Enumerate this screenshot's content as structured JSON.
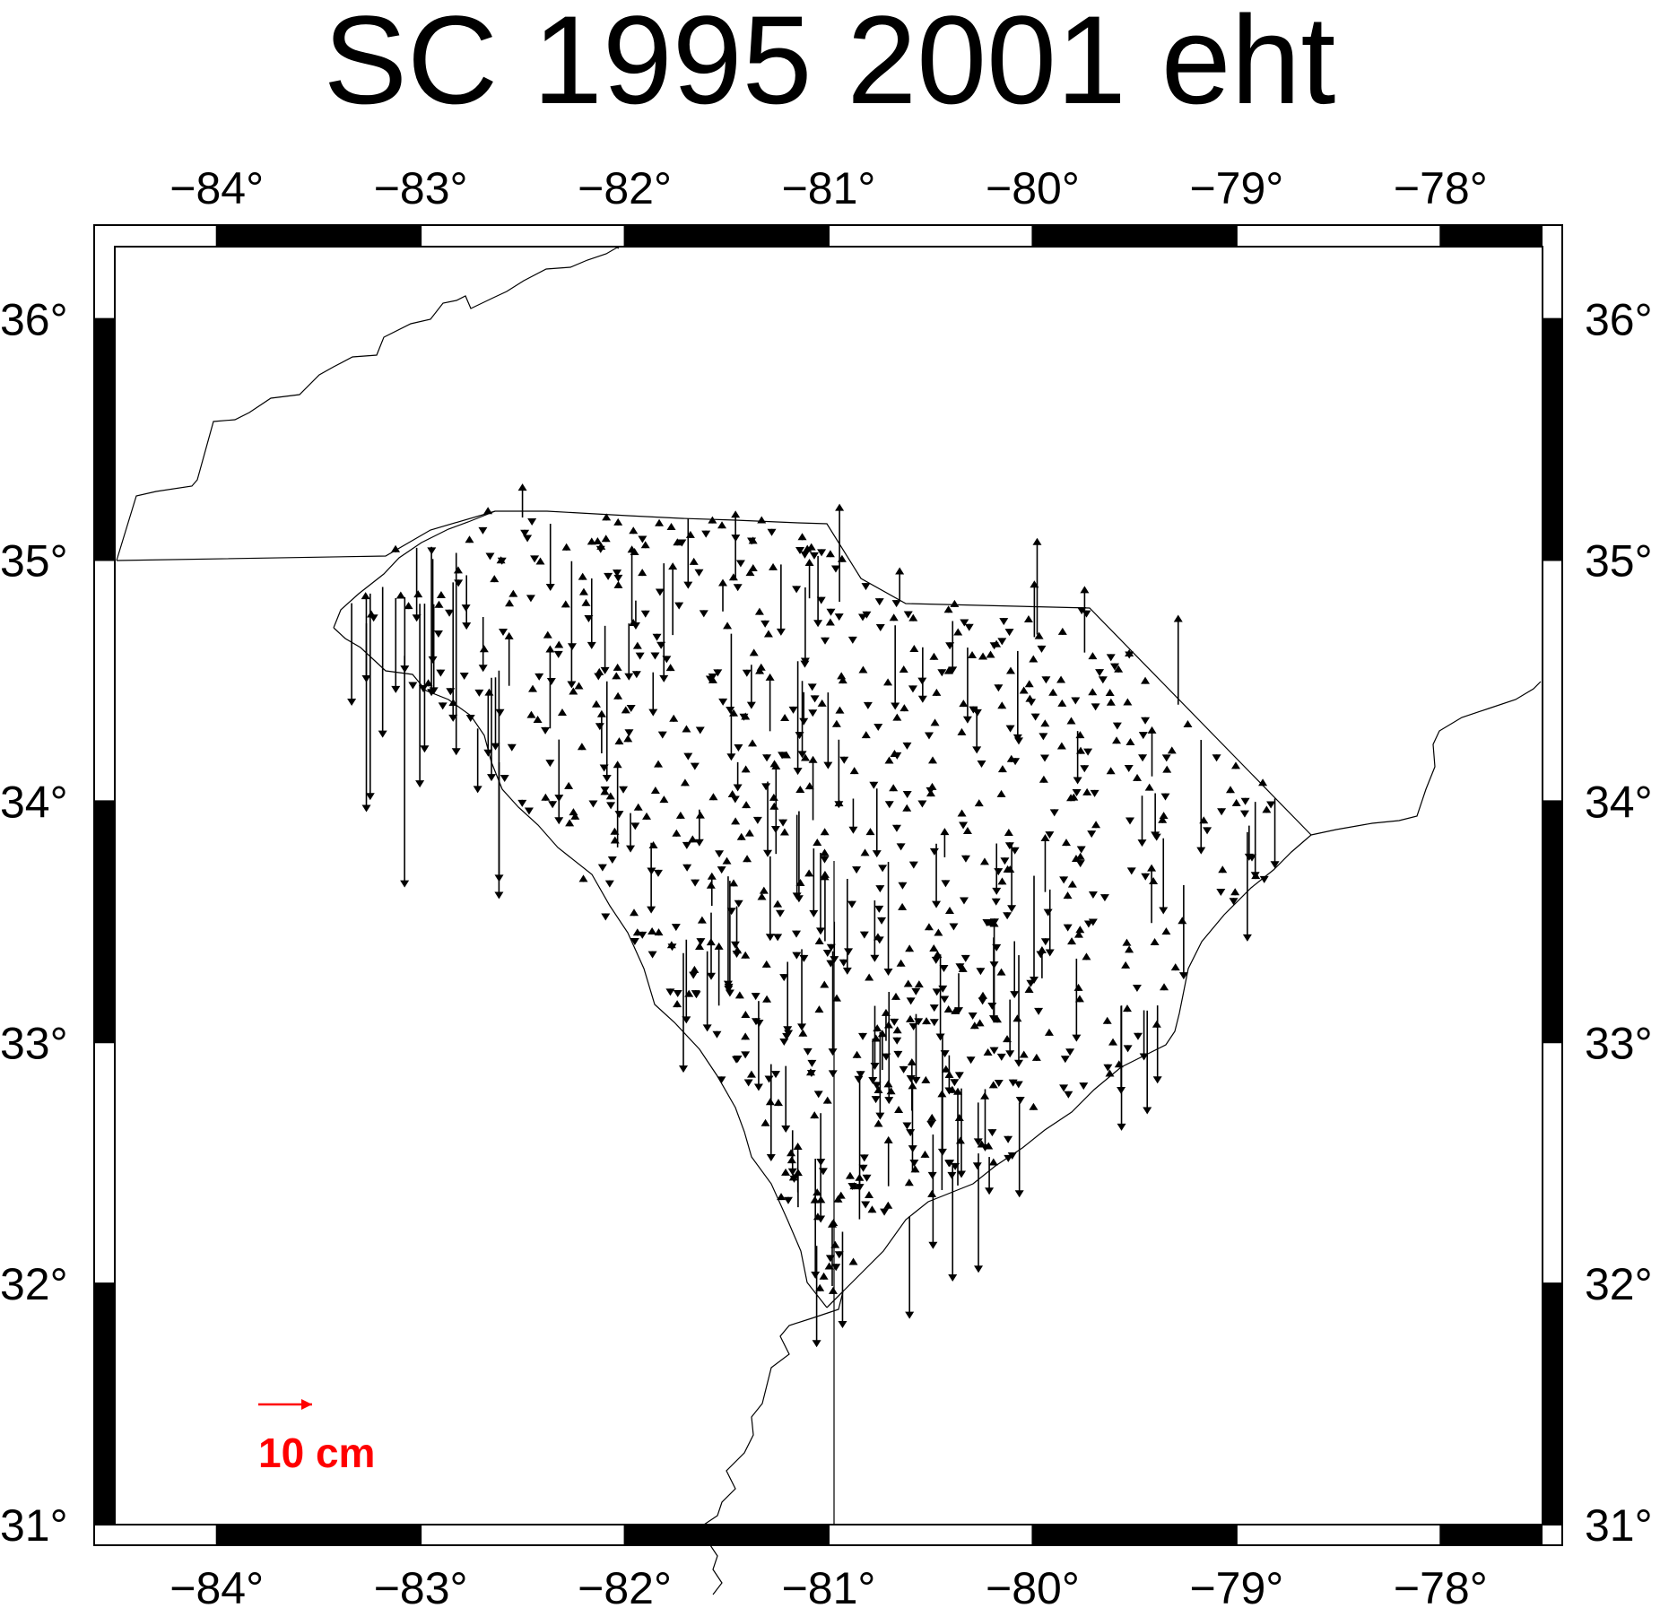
{
  "title": "SC 1995 2001 eht",
  "axes": {
    "lon_ticks": [
      -84,
      -83,
      -82,
      -81,
      -80,
      -79,
      -78
    ],
    "lat_ticks": [
      31,
      32,
      33,
      34,
      35,
      36
    ],
    "lon_labels": [
      "−84°",
      "−83°",
      "−82°",
      "−81°",
      "−80°",
      "−79°",
      "−78°"
    ],
    "lat_labels": [
      "31°",
      "32°",
      "33°",
      "34°",
      "35°",
      "36°"
    ],
    "lon_range": [
      -84.5,
      -77.5
    ],
    "lat_range": [
      31.0,
      36.3
    ]
  },
  "scale": {
    "label": "10 cm",
    "length_cm": 10,
    "color": "#ff0000"
  },
  "colors": {
    "frame": "#000000",
    "vectors": "#000000",
    "coastline": "#000000"
  }
}
